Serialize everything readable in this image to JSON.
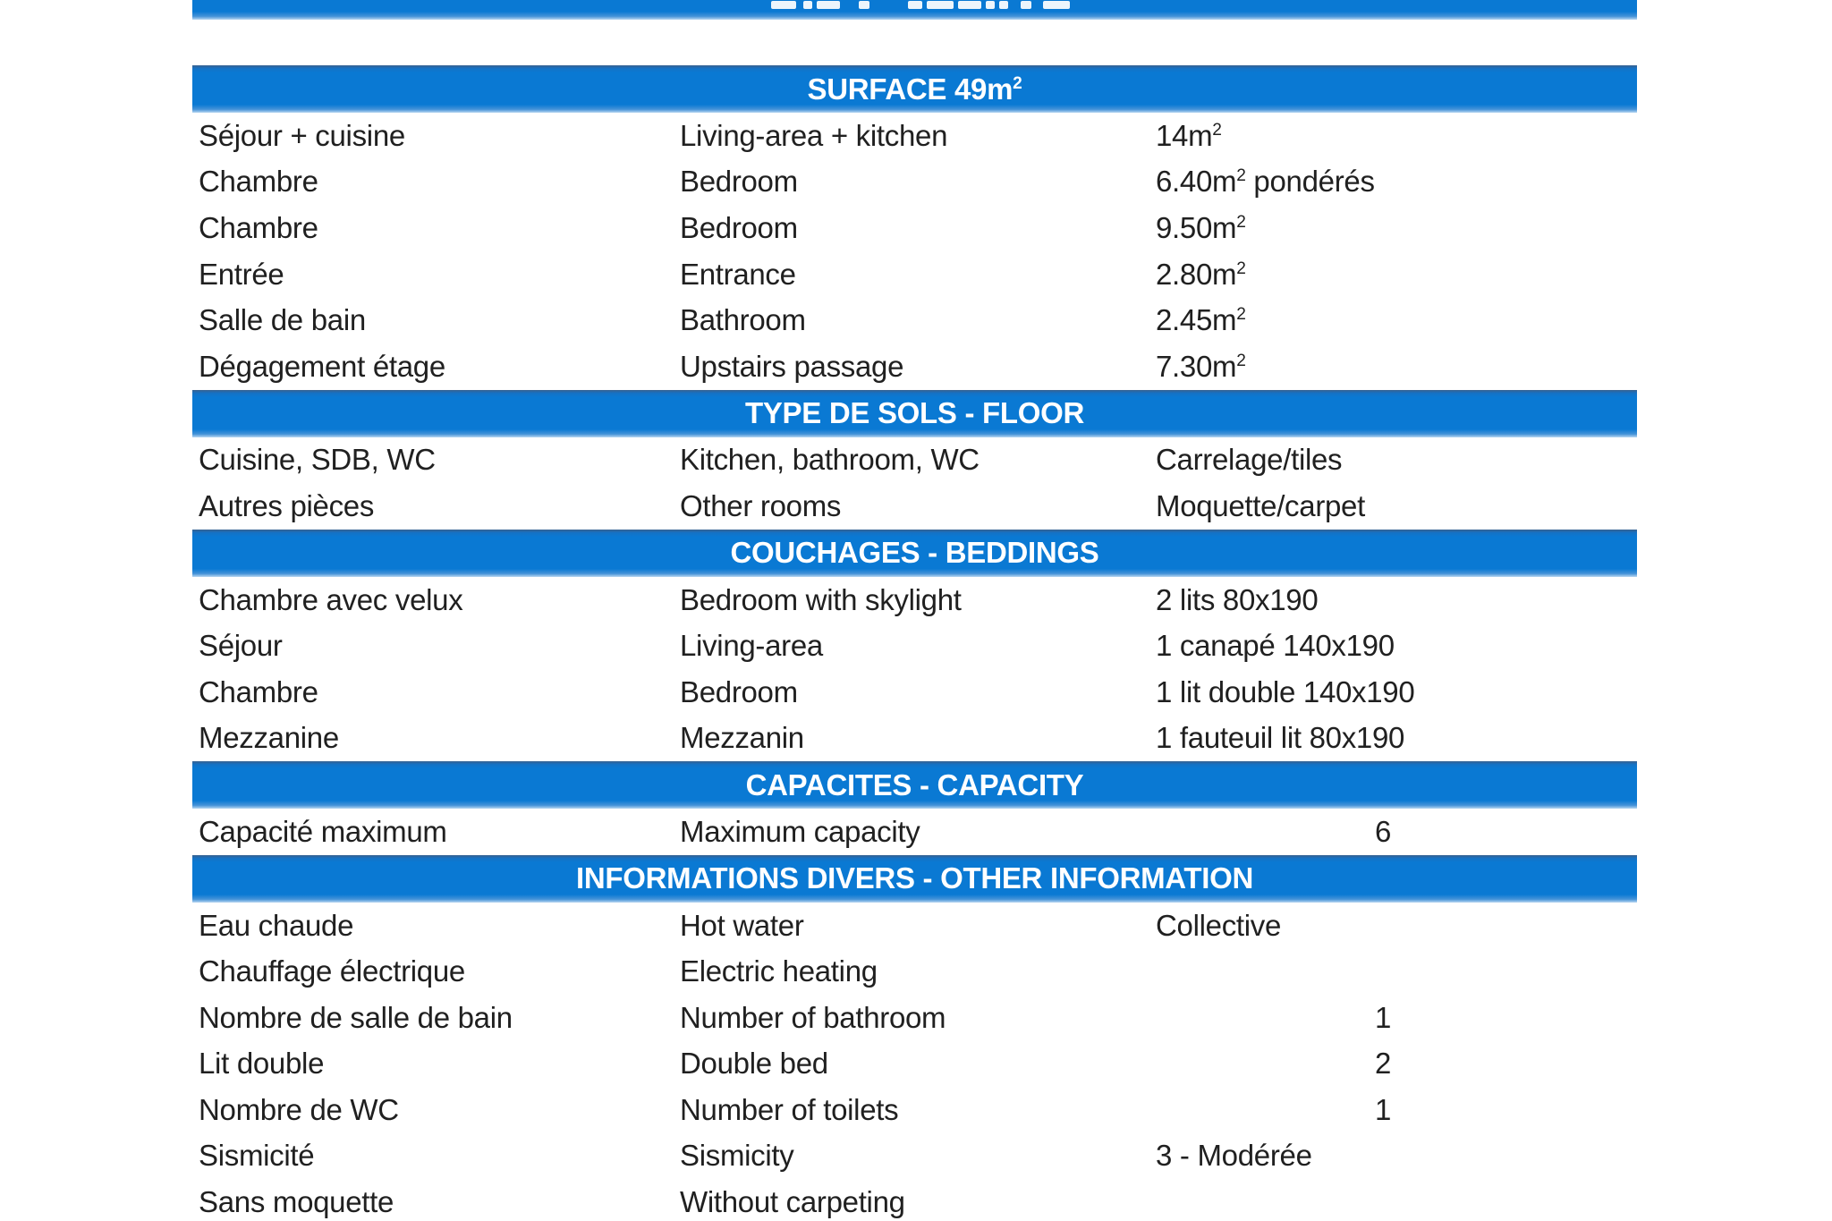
{
  "page": {
    "accent_blue": "#0a79d3",
    "header_text_color": "#ffffff",
    "body_text_color": "#202020",
    "background": "#ffffff"
  },
  "sections": [
    {
      "title": "SURFACE 49m²",
      "rows": [
        {
          "fr": "Séjour + cuisine",
          "en": "Living-area + kitchen",
          "value": "14m²"
        },
        {
          "fr": "Chambre",
          "en": "Bedroom",
          "value": "6.40m² pondérés"
        },
        {
          "fr": "Chambre",
          "en": "Bedroom",
          "value": "9.50m²"
        },
        {
          "fr": "Entrée",
          "en": "Entrance",
          "value": "2.80m²"
        },
        {
          "fr": "Salle de bain",
          "en": "Bathroom",
          "value": "2.45m²"
        },
        {
          "fr": "Dégagement étage",
          "en": "Upstairs passage",
          "value": "7.30m²"
        }
      ]
    },
    {
      "title": "TYPE DE SOLS - FLOOR",
      "rows": [
        {
          "fr": "Cuisine, SDB, WC",
          "en": "Kitchen, bathroom, WC",
          "value": "Carrelage/tiles"
        },
        {
          "fr": "Autres pièces",
          "en": "Other rooms",
          "value": "Moquette/carpet"
        }
      ]
    },
    {
      "title": "COUCHAGES - BEDDINGS",
      "rows": [
        {
          "fr": "Chambre avec velux",
          "en": "Bedroom with skylight",
          "value": "2 lits 80x190"
        },
        {
          "fr": "Séjour",
          "en": "Living-area",
          "value": "1 canapé 140x190"
        },
        {
          "fr": "Chambre",
          "en": "Bedroom",
          "value": "1 lit double 140x190"
        },
        {
          "fr": "Mezzanine",
          "en": "Mezzanin",
          "value": "1 fauteuil lit 80x190"
        }
      ]
    },
    {
      "title": "CAPACITES - CAPACITY",
      "rows": [
        {
          "fr": "Capacité maximum",
          "en": "Maximum capacity",
          "value": "6",
          "value_align": "center"
        }
      ]
    },
    {
      "title": "INFORMATIONS DIVERS - OTHER INFORMATION",
      "rows": [
        {
          "fr": "Eau chaude",
          "en": "Hot water",
          "value": "Collective"
        },
        {
          "fr": "Chauffage électrique",
          "en": "Electric heating",
          "value": ""
        },
        {
          "fr": "Nombre de salle de bain",
          "en": "Number of bathroom",
          "value": "1",
          "value_align": "center"
        },
        {
          "fr": "Lit double",
          "en": "Double bed",
          "value": "2",
          "value_align": "center"
        },
        {
          "fr": "Nombre de WC",
          "en": "Number of toilets",
          "value": "1",
          "value_align": "center"
        },
        {
          "fr": "Sismicité",
          "en": "Sismicity",
          "value": "3 - Modérée"
        },
        {
          "fr": "Sans moquette",
          "en": "Without carpeting",
          "value": ""
        }
      ]
    }
  ]
}
